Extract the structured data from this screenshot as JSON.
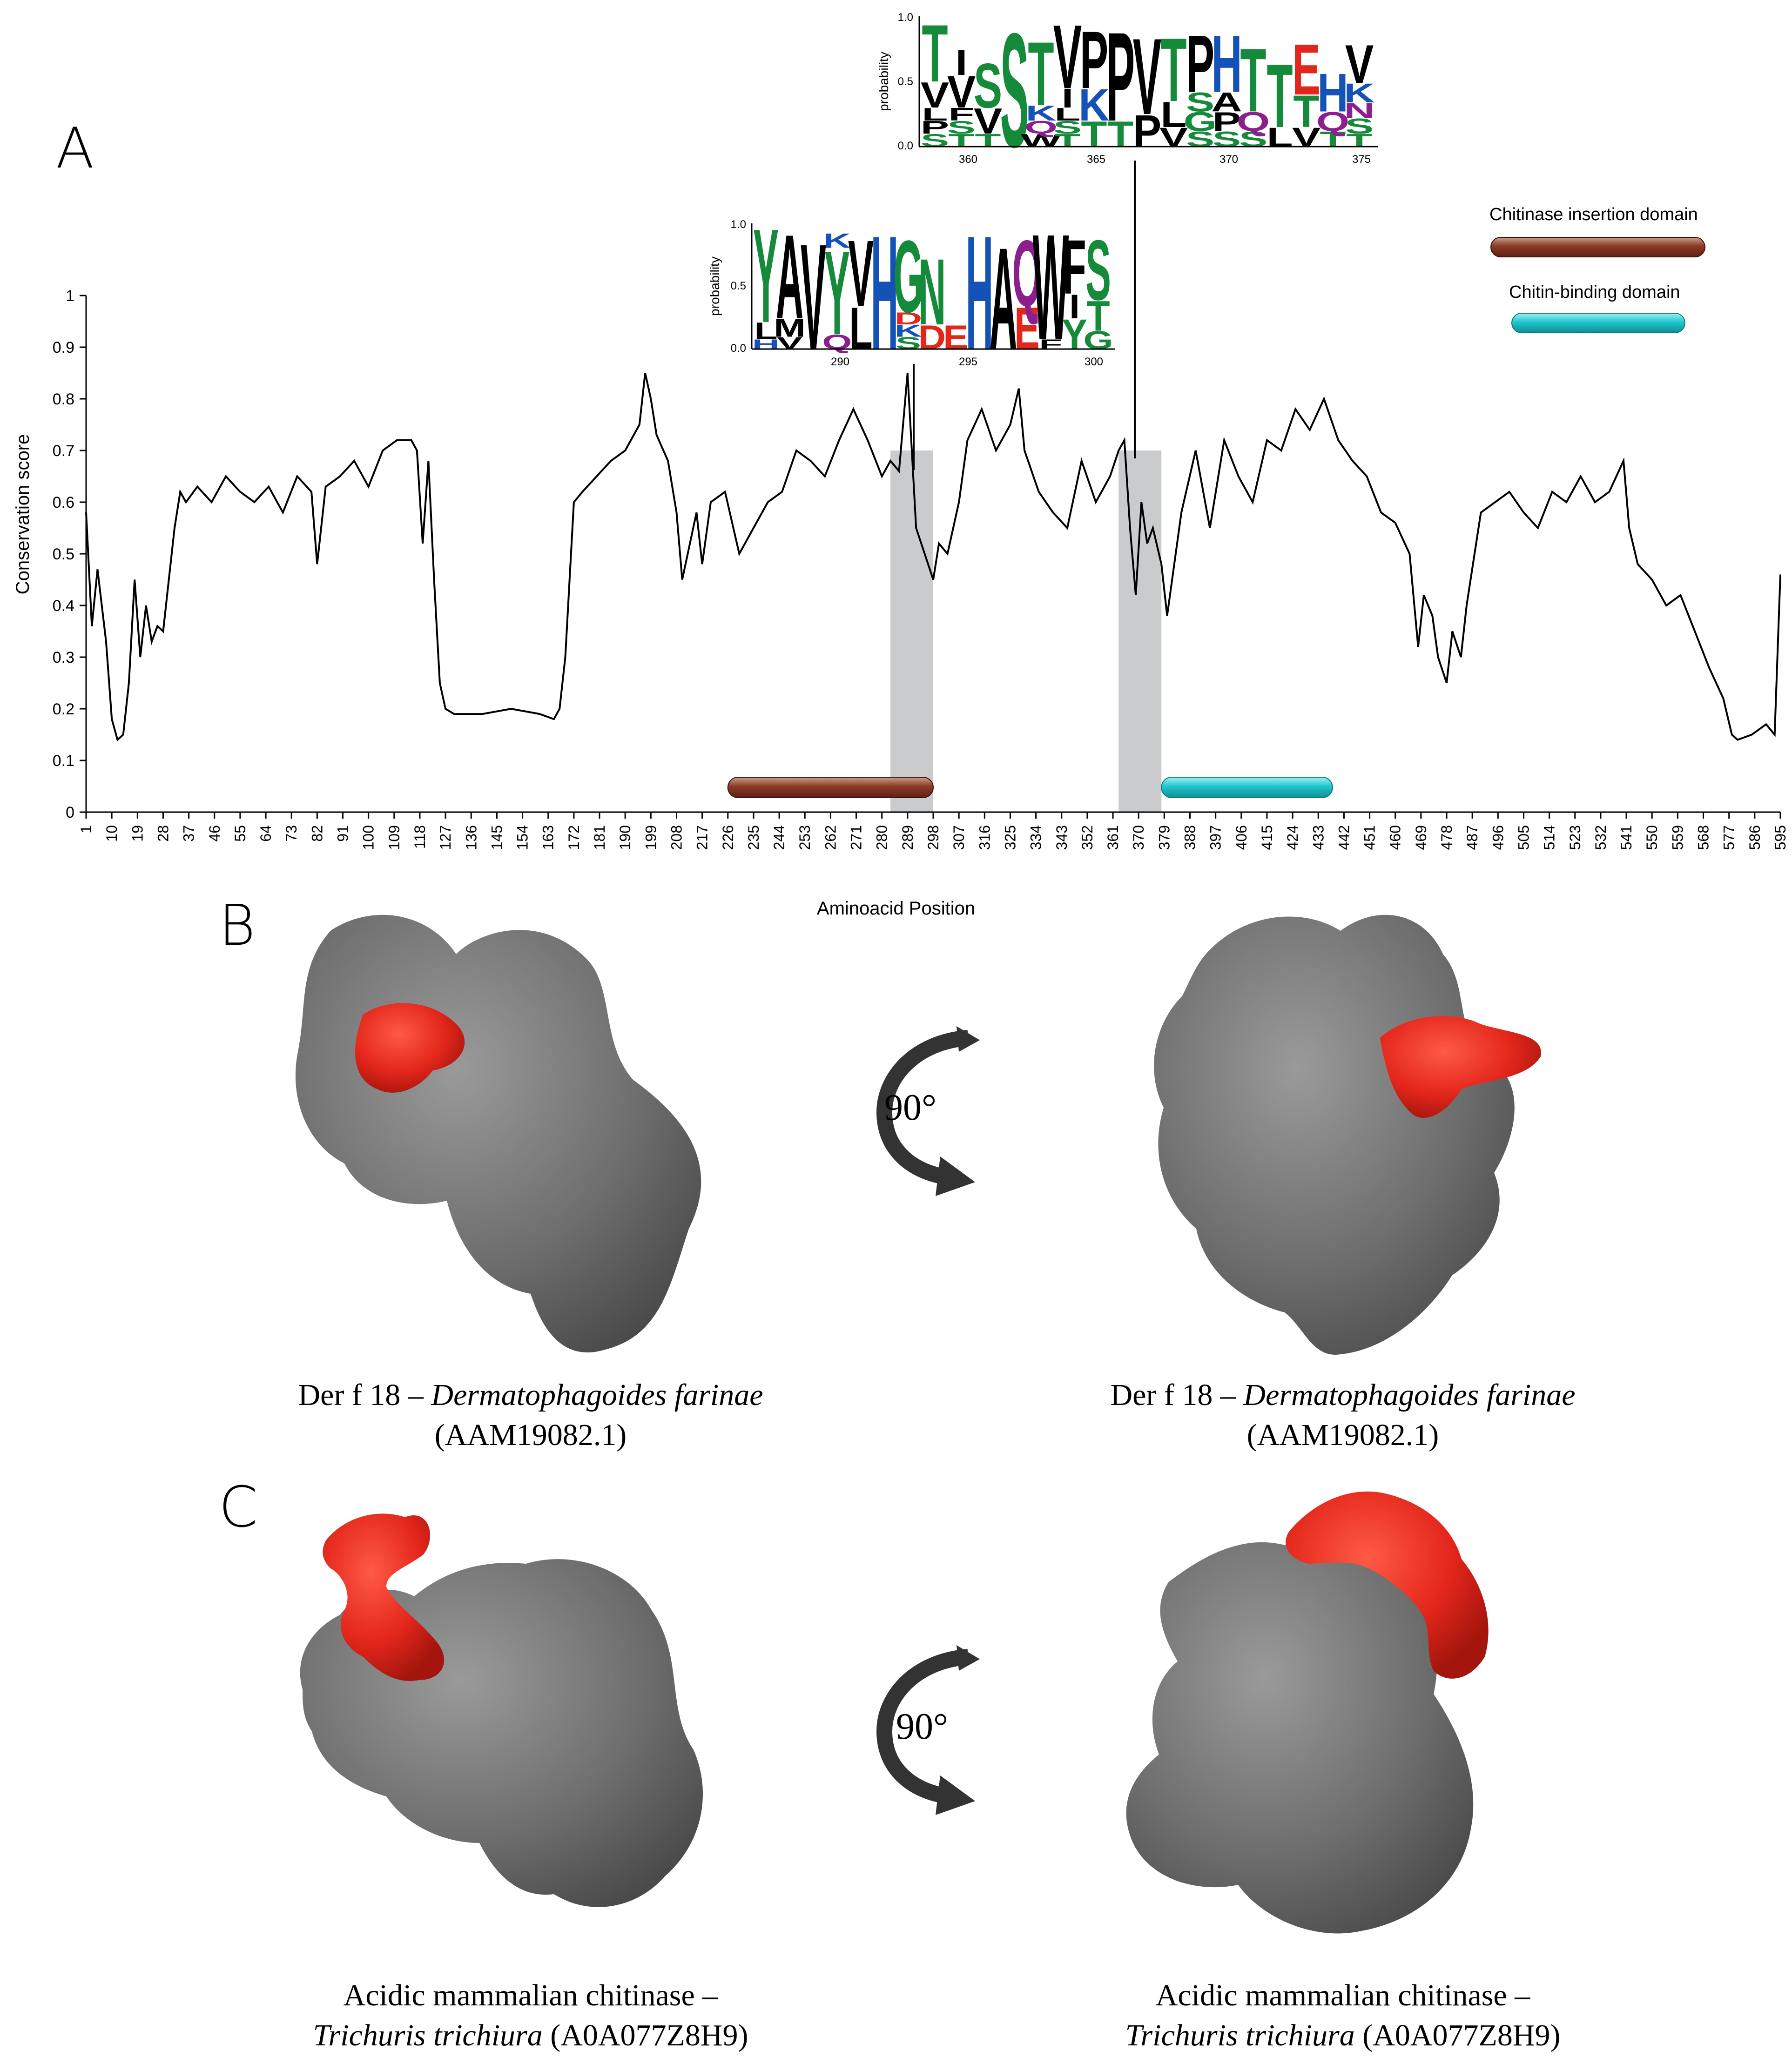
{
  "panels": {
    "a": "A",
    "b": "B",
    "c": "C"
  },
  "colors": {
    "line": "#000000",
    "highlight": "#c9cbcc",
    "insertion": "#8b3a24",
    "chitin": "#1fc6cc",
    "epitope": "#e3261b",
    "protein": "#6f6f6f"
  },
  "chart_data": {
    "type": "line",
    "xlabel": "Aminoacid Position",
    "ylabel": "Conservation score",
    "xlim": [
      1,
      595
    ],
    "ylim": [
      0,
      1
    ],
    "yticks": [
      "0",
      "0.1",
      "0.2",
      "0.3",
      "0.4",
      "0.5",
      "0.6",
      "0.7",
      "0.8",
      "0.9",
      "1"
    ],
    "xticks": [
      "1",
      "10",
      "19",
      "28",
      "37",
      "46",
      "55",
      "64",
      "73",
      "82",
      "91",
      "100",
      "109",
      "118",
      "127",
      "136",
      "145",
      "154",
      "163",
      "172",
      "181",
      "190",
      "199",
      "208",
      "217",
      "226",
      "235",
      "244",
      "253",
      "262",
      "271",
      "280",
      "289",
      "298",
      "307",
      "316",
      "325",
      "334",
      "343",
      "352",
      "361",
      "370",
      "379",
      "388",
      "397",
      "406",
      "415",
      "424",
      "433",
      "442",
      "451",
      "460",
      "469",
      "478",
      "487",
      "496",
      "505",
      "514",
      "523",
      "532",
      "541",
      "550",
      "559",
      "568",
      "577",
      "586",
      "595"
    ],
    "series": [
      {
        "x": [
          1,
          3,
          5,
          8,
          10,
          12,
          14,
          16,
          18,
          20,
          22,
          24,
          26,
          28,
          30,
          32,
          34,
          36,
          40,
          45,
          50,
          55,
          60,
          65,
          70,
          75,
          80,
          82,
          85,
          90,
          95,
          100,
          105,
          110,
          115,
          117,
          119,
          121,
          123,
          125,
          127,
          130,
          140,
          150,
          160,
          165,
          167,
          169,
          172,
          175,
          180,
          185,
          190,
          195,
          197,
          199,
          201,
          205,
          208,
          210,
          215,
          217,
          220,
          225,
          230,
          235,
          240,
          245,
          250,
          255,
          260,
          265,
          270,
          275,
          280,
          283,
          286,
          289,
          292,
          295,
          298,
          300,
          303,
          307,
          310,
          315,
          320,
          325,
          328,
          330,
          335,
          340,
          345,
          350,
          355,
          360,
          363,
          365,
          367,
          369,
          371,
          373,
          375,
          378,
          380,
          385,
          390,
          395,
          400,
          405,
          410,
          415,
          420,
          425,
          430,
          435,
          440,
          445,
          450,
          455,
          460,
          465,
          468,
          470,
          473,
          475,
          478,
          480,
          483,
          485,
          490,
          495,
          500,
          505,
          510,
          515,
          520,
          525,
          530,
          535,
          540,
          542,
          545,
          550,
          555,
          560,
          565,
          570,
          575,
          578,
          580,
          585,
          590,
          593,
          595
        ],
        "y": [
          0.58,
          0.36,
          0.47,
          0.33,
          0.18,
          0.14,
          0.15,
          0.25,
          0.45,
          0.3,
          0.4,
          0.33,
          0.36,
          0.35,
          0.45,
          0.55,
          0.62,
          0.6,
          0.63,
          0.6,
          0.65,
          0.62,
          0.6,
          0.63,
          0.58,
          0.65,
          0.62,
          0.48,
          0.63,
          0.65,
          0.68,
          0.63,
          0.7,
          0.72,
          0.72,
          0.7,
          0.52,
          0.68,
          0.45,
          0.25,
          0.2,
          0.19,
          0.19,
          0.2,
          0.19,
          0.18,
          0.2,
          0.3,
          0.6,
          0.62,
          0.65,
          0.68,
          0.7,
          0.75,
          0.85,
          0.8,
          0.73,
          0.68,
          0.58,
          0.45,
          0.58,
          0.48,
          0.6,
          0.62,
          0.5,
          0.55,
          0.6,
          0.62,
          0.7,
          0.68,
          0.65,
          0.72,
          0.78,
          0.72,
          0.65,
          0.68,
          0.66,
          0.85,
          0.55,
          0.5,
          0.45,
          0.52,
          0.5,
          0.6,
          0.72,
          0.78,
          0.7,
          0.75,
          0.82,
          0.7,
          0.62,
          0.58,
          0.55,
          0.68,
          0.6,
          0.65,
          0.7,
          0.72,
          0.55,
          0.42,
          0.6,
          0.52,
          0.55,
          0.48,
          0.38,
          0.58,
          0.7,
          0.55,
          0.72,
          0.65,
          0.6,
          0.72,
          0.7,
          0.78,
          0.74,
          0.8,
          0.72,
          0.68,
          0.65,
          0.58,
          0.56,
          0.5,
          0.32,
          0.42,
          0.38,
          0.3,
          0.25,
          0.35,
          0.3,
          0.4,
          0.58,
          0.6,
          0.62,
          0.58,
          0.55,
          0.62,
          0.6,
          0.65,
          0.6,
          0.62,
          0.68,
          0.55,
          0.48,
          0.45,
          0.4,
          0.42,
          0.35,
          0.28,
          0.22,
          0.15,
          0.14,
          0.15,
          0.17,
          0.15,
          0.46
        ]
      }
    ],
    "highlights": [
      [
        283,
        298
      ],
      [
        363,
        378
      ]
    ],
    "domains": [
      {
        "name": "Chitinase insertion domain",
        "start": 226,
        "end": 298,
        "color": "#8b3a24"
      },
      {
        "name": "Chitin-binding domain",
        "start": 378,
        "end": 438,
        "color": "#1fc6cc"
      }
    ]
  },
  "logo1": {
    "ylabel": "probability",
    "yticks": [
      "0.0",
      "0.5",
      "1.0"
    ],
    "xticks": [
      "290",
      "295",
      "300"
    ],
    "letters": [
      {
        "c": "Y",
        "col": "#148a3a",
        "h": 0.78,
        "pos": 0
      },
      {
        "c": "L",
        "col": "#000000",
        "h": 0.14,
        "pos": 0
      },
      {
        "c": "H",
        "col": "#1452b8",
        "h": 0.08,
        "pos": 0
      },
      {
        "c": "A",
        "col": "#000000",
        "h": 0.7,
        "pos": 1
      },
      {
        "c": "M",
        "col": "#000000",
        "h": 0.15,
        "pos": 1
      },
      {
        "c": "V",
        "col": "#000000",
        "h": 0.1,
        "pos": 1
      },
      {
        "c": "V",
        "col": "#000000",
        "h": 0.88,
        "pos": 2
      },
      {
        "c": "K",
        "col": "#1452b8",
        "h": 0.12,
        "pos": 3
      },
      {
        "c": "Y",
        "col": "#148a3a",
        "h": 0.7,
        "pos": 3
      },
      {
        "c": "Q",
        "col": "#8b1f8e",
        "h": 0.12,
        "pos": 3
      },
      {
        "c": "V",
        "col": "#000000",
        "h": 0.55,
        "pos": 4
      },
      {
        "c": "L",
        "col": "#000000",
        "h": 0.35,
        "pos": 4
      },
      {
        "c": "H",
        "col": "#1452b8",
        "h": 0.95,
        "pos": 5
      },
      {
        "c": "G",
        "col": "#148a3a",
        "h": 0.6,
        "pos": 6
      },
      {
        "c": "D",
        "col": "#e3261b",
        "h": 0.1,
        "pos": 6
      },
      {
        "c": "K",
        "col": "#1452b8",
        "h": 0.1,
        "pos": 6
      },
      {
        "c": "S",
        "col": "#148a3a",
        "h": 0.1,
        "pos": 6
      },
      {
        "c": "N",
        "col": "#148a3a",
        "h": 0.55,
        "pos": 7
      },
      {
        "c": "D",
        "col": "#e3261b",
        "h": 0.2,
        "pos": 7
      },
      {
        "c": "E",
        "col": "#e3261b",
        "h": 0.2,
        "pos": 8
      },
      {
        "c": "H",
        "col": "#1452b8",
        "h": 0.95,
        "pos": 9
      },
      {
        "c": "A",
        "col": "#000000",
        "h": 0.85,
        "pos": 10
      },
      {
        "c": "Q",
        "col": "#8b1f8e",
        "h": 0.55,
        "pos": 11
      },
      {
        "c": "E",
        "col": "#e3261b",
        "h": 0.35,
        "pos": 11
      },
      {
        "c": "W",
        "col": "#000000",
        "h": 0.88,
        "pos": 12
      },
      {
        "c": "F",
        "col": "#000000",
        "h": 0.08,
        "pos": 12
      },
      {
        "c": "F",
        "col": "#000000",
        "h": 0.45,
        "pos": 13
      },
      {
        "c": "I",
        "col": "#000000",
        "h": 0.2,
        "pos": 13
      },
      {
        "c": "Y",
        "col": "#148a3a",
        "h": 0.25,
        "pos": 13
      },
      {
        "c": "S",
        "col": "#148a3a",
        "h": 0.5,
        "pos": 14
      },
      {
        "c": "T",
        "col": "#148a3a",
        "h": 0.25,
        "pos": 14
      },
      {
        "c": "G",
        "col": "#148a3a",
        "h": 0.15,
        "pos": 14
      }
    ]
  },
  "logo2": {
    "ylabel": "probability",
    "yticks": [
      "0.0",
      "0.5",
      "1.0"
    ],
    "xticks": [
      "360",
      "365",
      "370",
      "375"
    ],
    "letters": [
      {
        "c": "T",
        "col": "#148a3a",
        "h": 0.45,
        "pos": 0
      },
      {
        "c": "V",
        "col": "#000000",
        "h": 0.2,
        "pos": 0
      },
      {
        "c": "L",
        "col": "#000000",
        "h": 0.1,
        "pos": 0
      },
      {
        "c": "P",
        "col": "#000000",
        "h": 0.1,
        "pos": 0
      },
      {
        "c": "S",
        "col": "#148a3a",
        "h": 0.1,
        "pos": 0
      },
      {
        "c": "I",
        "col": "#000000",
        "h": 0.2,
        "pos": 1
      },
      {
        "c": "V",
        "col": "#000000",
        "h": 0.25,
        "pos": 1
      },
      {
        "c": "F",
        "col": "#000000",
        "h": 0.1,
        "pos": 1
      },
      {
        "c": "S",
        "col": "#148a3a",
        "h": 0.1,
        "pos": 1
      },
      {
        "c": "T",
        "col": "#148a3a",
        "h": 0.1,
        "pos": 1
      },
      {
        "c": "S",
        "col": "#148a3a",
        "h": 0.35,
        "pos": 2
      },
      {
        "c": "V",
        "col": "#000000",
        "h": 0.2,
        "pos": 2
      },
      {
        "c": "T",
        "col": "#148a3a",
        "h": 0.1,
        "pos": 2
      },
      {
        "c": "S",
        "col": "#148a3a",
        "h": 0.9,
        "pos": 3
      },
      {
        "c": "T",
        "col": "#148a3a",
        "h": 0.5,
        "pos": 4
      },
      {
        "c": "K",
        "col": "#1452b8",
        "h": 0.12,
        "pos": 4
      },
      {
        "c": "Q",
        "col": "#8b1f8e",
        "h": 0.1,
        "pos": 4
      },
      {
        "c": "W",
        "col": "#000000",
        "h": 0.1,
        "pos": 4
      },
      {
        "c": "V",
        "col": "#000000",
        "h": 0.5,
        "pos": 5
      },
      {
        "c": "I",
        "col": "#000000",
        "h": 0.15,
        "pos": 5
      },
      {
        "c": "L",
        "col": "#000000",
        "h": 0.1,
        "pos": 5
      },
      {
        "c": "S",
        "col": "#148a3a",
        "h": 0.1,
        "pos": 5
      },
      {
        "c": "T",
        "col": "#148a3a",
        "h": 0.1,
        "pos": 5
      },
      {
        "c": "P",
        "col": "#000000",
        "h": 0.45,
        "pos": 6
      },
      {
        "c": "K",
        "col": "#1452b8",
        "h": 0.25,
        "pos": 6
      },
      {
        "c": "T",
        "col": "#148a3a",
        "h": 0.2,
        "pos": 6
      },
      {
        "c": "P",
        "col": "#000000",
        "h": 0.7,
        "pos": 7
      },
      {
        "c": "T",
        "col": "#148a3a",
        "h": 0.2,
        "pos": 7
      },
      {
        "c": "V",
        "col": "#000000",
        "h": 0.6,
        "pos": 8
      },
      {
        "c": "P",
        "col": "#000000",
        "h": 0.25,
        "pos": 8
      },
      {
        "c": "T",
        "col": "#148a3a",
        "h": 0.5,
        "pos": 9
      },
      {
        "c": "L",
        "col": "#000000",
        "h": 0.2,
        "pos": 9
      },
      {
        "c": "V",
        "col": "#000000",
        "h": 0.15,
        "pos": 9
      },
      {
        "c": "P",
        "col": "#000000",
        "h": 0.45,
        "pos": 10
      },
      {
        "c": "S",
        "col": "#148a3a",
        "h": 0.15,
        "pos": 10
      },
      {
        "c": "G",
        "col": "#148a3a",
        "h": 0.15,
        "pos": 10
      },
      {
        "c": "S",
        "col": "#148a3a",
        "h": 0.12,
        "pos": 10
      },
      {
        "c": "H",
        "col": "#1452b8",
        "h": 0.45,
        "pos": 11
      },
      {
        "c": "A",
        "col": "#000000",
        "h": 0.15,
        "pos": 11
      },
      {
        "c": "P",
        "col": "#000000",
        "h": 0.15,
        "pos": 11
      },
      {
        "c": "S",
        "col": "#148a3a",
        "h": 0.12,
        "pos": 11
      },
      {
        "c": "T",
        "col": "#148a3a",
        "h": 0.5,
        "pos": 12
      },
      {
        "c": "Q",
        "col": "#8b1f8e",
        "h": 0.15,
        "pos": 12
      },
      {
        "c": "S",
        "col": "#148a3a",
        "h": 0.12,
        "pos": 12
      },
      {
        "c": "T",
        "col": "#148a3a",
        "h": 0.5,
        "pos": 13
      },
      {
        "c": "L",
        "col": "#000000",
        "h": 0.15,
        "pos": 13
      },
      {
        "c": "E",
        "col": "#e3261b",
        "h": 0.4,
        "pos": 14
      },
      {
        "c": "T",
        "col": "#148a3a",
        "h": 0.25,
        "pos": 14
      },
      {
        "c": "V",
        "col": "#000000",
        "h": 0.15,
        "pos": 14
      },
      {
        "c": "H",
        "col": "#1452b8",
        "h": 0.3,
        "pos": 15
      },
      {
        "c": "Q",
        "col": "#8b1f8e",
        "h": 0.15,
        "pos": 15
      },
      {
        "c": "T",
        "col": "#148a3a",
        "h": 0.12,
        "pos": 15
      },
      {
        "c": "V",
        "col": "#000000",
        "h": 0.3,
        "pos": 16
      },
      {
        "c": "K",
        "col": "#1452b8",
        "h": 0.15,
        "pos": 16
      },
      {
        "c": "N",
        "col": "#8b1f8e",
        "h": 0.12,
        "pos": 16
      },
      {
        "c": "S",
        "col": "#148a3a",
        "h": 0.12,
        "pos": 16
      },
      {
        "c": "T",
        "col": "#148a3a",
        "h": 0.1,
        "pos": 16
      }
    ]
  },
  "captions": {
    "b_left_1": "Der f 18 – ",
    "b_left_2": "Dermatophagoides farinae",
    "b_left_3": "(AAM19082.1)",
    "b_right_1": "Der f 18 – ",
    "b_right_2": "Dermatophagoides farinae",
    "b_right_3": "(AAM19082.1)",
    "c_left_1": "Acidic mammalian chitinase –",
    "c_left_2": "Trichuris trichiura",
    "c_left_3": " (A0A077Z8H9)",
    "c_right_1": "Acidic mammalian chitinase –",
    "c_right_2": "Trichuris trichiura",
    "c_right_3": " (A0A077Z8H9)"
  },
  "rotation_b": "90°",
  "rotation_c": "90°"
}
